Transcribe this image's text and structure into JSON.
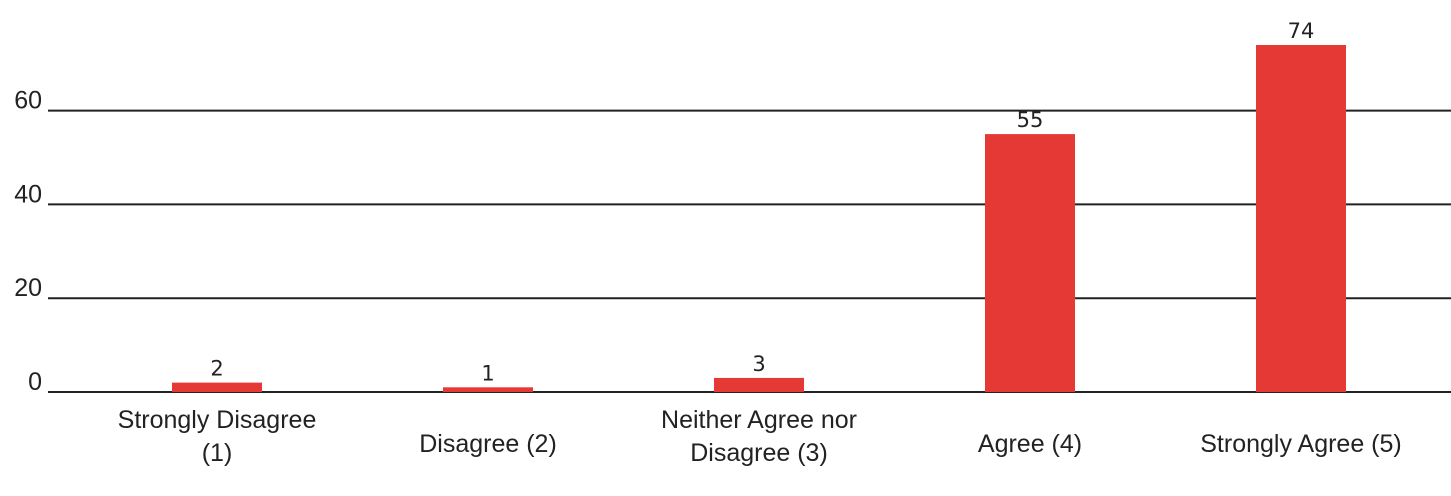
{
  "chart_data": {
    "type": "bar",
    "title": "",
    "xlabel": "",
    "ylabel": "",
    "categories": [
      [
        "Strongly Disagree",
        "(1)"
      ],
      [
        "Disagree (2)"
      ],
      [
        "Neither Agree nor",
        "Disagree (3)"
      ],
      [
        "Agree (4)"
      ],
      [
        "Strongly Agree (5)"
      ]
    ],
    "values": [
      2,
      1,
      3,
      55,
      74
    ],
    "data_labels": [
      "2",
      "1",
      "3",
      "55",
      "74"
    ],
    "y_ticks": [
      0,
      20,
      40,
      60
    ],
    "y_tick_labels": [
      "0",
      "20",
      "40",
      "60"
    ],
    "ylim": [
      0,
      74
    ],
    "grid": true,
    "legend": "none",
    "colors": {
      "bar": "#e53935",
      "grid": "#222222",
      "text": "#222222"
    }
  }
}
